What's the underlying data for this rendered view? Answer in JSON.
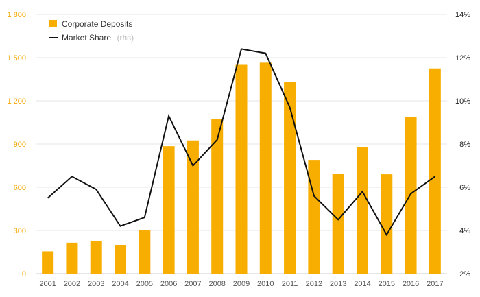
{
  "chart_data": {
    "type": "bar",
    "categories": [
      "2001",
      "2002",
      "2003",
      "2004",
      "2005",
      "2006",
      "2007",
      "2008",
      "2009",
      "2010",
      "2011",
      "2012",
      "2013",
      "2014",
      "2015",
      "2016",
      "2017"
    ],
    "series": [
      {
        "name": "Corporate Deposits",
        "type": "bar",
        "axis": "left",
        "color": "#f7ae00",
        "values": [
          155,
          215,
          225,
          200,
          300,
          885,
          925,
          1075,
          1450,
          1465,
          1330,
          790,
          695,
          880,
          690,
          1090,
          1425
        ]
      },
      {
        "name": "Market Share",
        "name_note": "(rhs)",
        "type": "line",
        "axis": "right",
        "color": "#111111",
        "values": [
          5.5,
          6.5,
          5.9,
          4.2,
          4.6,
          9.3,
          7.0,
          8.2,
          12.4,
          12.2,
          9.7,
          5.6,
          4.5,
          5.8,
          3.8,
          5.7,
          6.5
        ]
      }
    ],
    "left_axis": {
      "ylim": [
        0,
        1800
      ],
      "ticks": [
        0,
        300,
        600,
        900,
        1200,
        1500,
        1800
      ],
      "tick_labels": [
        "0",
        "300",
        "600",
        "900",
        "1 200",
        "1 500",
        "1 800"
      ],
      "color": "#f5a800"
    },
    "right_axis": {
      "ylim": [
        2,
        14
      ],
      "ticks": [
        2,
        4,
        6,
        8,
        10,
        12,
        14
      ],
      "tick_labels": [
        "2%",
        "4%",
        "6%",
        "8%",
        "10%",
        "12%",
        "14%"
      ]
    },
    "legend": {
      "position": "top-left"
    },
    "grid": true
  }
}
